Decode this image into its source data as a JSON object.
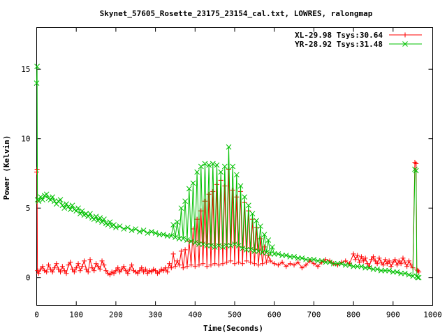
{
  "chart_data": {
    "type": "line",
    "title": "Skynet_57605_Rosette_23175_23154_cal.txt, LOWRES, ralongmap",
    "xlabel": "Time(Seconds)",
    "ylabel": "Power (Kelvin)",
    "xlim": [
      0,
      1000
    ],
    "ylim": [
      -2,
      18
    ],
    "xticks": [
      0,
      100,
      200,
      300,
      400,
      500,
      600,
      700,
      800,
      900,
      1000
    ],
    "yticks": [
      0,
      5,
      10,
      15
    ],
    "grid": false,
    "legend_position": "top-right",
    "series": [
      {
        "name": "XL-29.98 Tsys:30.64",
        "color": "#ff0000",
        "marker": "plus",
        "points": [
          [
            0,
            7.6
          ],
          [
            1,
            7.8
          ],
          [
            2,
            0.5
          ],
          [
            5,
            0.3
          ],
          [
            10,
            0.6
          ],
          [
            15,
            0.8
          ],
          [
            20,
            0.5
          ],
          [
            25,
            0.4
          ],
          [
            30,
            0.9
          ],
          [
            35,
            0.6
          ],
          [
            40,
            0.4
          ],
          [
            45,
            0.7
          ],
          [
            50,
            1.0
          ],
          [
            55,
            0.6
          ],
          [
            60,
            0.4
          ],
          [
            65,
            0.8
          ],
          [
            70,
            0.5
          ],
          [
            75,
            0.3
          ],
          [
            80,
            0.9
          ],
          [
            85,
            1.1
          ],
          [
            90,
            0.6
          ],
          [
            95,
            0.4
          ],
          [
            100,
            0.7
          ],
          [
            105,
            1.0
          ],
          [
            110,
            0.5
          ],
          [
            115,
            0.8
          ],
          [
            120,
            1.2
          ],
          [
            125,
            0.6
          ],
          [
            130,
            0.4
          ],
          [
            135,
            1.3
          ],
          [
            140,
            0.7
          ],
          [
            145,
            0.5
          ],
          [
            150,
            1.0
          ],
          [
            155,
            0.8
          ],
          [
            160,
            0.6
          ],
          [
            165,
            1.2
          ],
          [
            170,
            0.9
          ],
          [
            175,
            0.5
          ],
          [
            180,
            0.3
          ],
          [
            185,
            0.2
          ],
          [
            190,
            0.4
          ],
          [
            195,
            0.3
          ],
          [
            200,
            0.5
          ],
          [
            205,
            0.7
          ],
          [
            210,
            0.4
          ],
          [
            215,
            0.6
          ],
          [
            220,
            0.8
          ],
          [
            225,
            0.5
          ],
          [
            230,
            0.3
          ],
          [
            235,
            0.6
          ],
          [
            240,
            0.9
          ],
          [
            245,
            0.5
          ],
          [
            250,
            0.4
          ],
          [
            255,
            0.3
          ],
          [
            260,
            0.5
          ],
          [
            265,
            0.7
          ],
          [
            270,
            0.4
          ],
          [
            275,
            0.6
          ],
          [
            280,
            0.3
          ],
          [
            285,
            0.5
          ],
          [
            290,
            0.4
          ],
          [
            295,
            0.6
          ],
          [
            300,
            0.5
          ],
          [
            305,
            0.3
          ],
          [
            310,
            0.4
          ],
          [
            315,
            0.6
          ],
          [
            320,
            0.5
          ],
          [
            325,
            0.7
          ],
          [
            330,
            0.4
          ],
          [
            335,
            1.0
          ],
          [
            340,
            0.7
          ],
          [
            345,
            1.7
          ],
          [
            350,
            0.8
          ],
          [
            355,
            1.2
          ],
          [
            360,
            0.9
          ],
          [
            365,
            1.9
          ],
          [
            370,
            0.7
          ],
          [
            375,
            2.0
          ],
          [
            380,
            0.8
          ],
          [
            385,
            2.6
          ],
          [
            390,
            0.9
          ],
          [
            395,
            3.5
          ],
          [
            400,
            0.8
          ],
          [
            405,
            4.2
          ],
          [
            410,
            0.9
          ],
          [
            415,
            4.8
          ],
          [
            420,
            1.0
          ],
          [
            425,
            5.5
          ],
          [
            430,
            0.8
          ],
          [
            435,
            6.0
          ],
          [
            440,
            0.9
          ],
          [
            445,
            6.2
          ],
          [
            450,
            1.0
          ],
          [
            455,
            6.7
          ],
          [
            460,
            0.9
          ],
          [
            465,
            7.0
          ],
          [
            470,
            1.0
          ],
          [
            475,
            6.6
          ],
          [
            480,
            1.1
          ],
          [
            485,
            7.8
          ],
          [
            490,
            1.2
          ],
          [
            495,
            6.3
          ],
          [
            500,
            1.0
          ],
          [
            505,
            5.8
          ],
          [
            510,
            1.1
          ],
          [
            515,
            6.2
          ],
          [
            520,
            1.0
          ],
          [
            525,
            5.4
          ],
          [
            530,
            1.2
          ],
          [
            535,
            4.8
          ],
          [
            540,
            1.1
          ],
          [
            545,
            4.2
          ],
          [
            550,
            1.0
          ],
          [
            555,
            3.6
          ],
          [
            560,
            0.9
          ],
          [
            565,
            2.8
          ],
          [
            570,
            1.0
          ],
          [
            575,
            2.2
          ],
          [
            580,
            1.1
          ],
          [
            585,
            1.6
          ],
          [
            590,
            1.2
          ],
          [
            600,
            1.0
          ],
          [
            610,
            0.9
          ],
          [
            620,
            1.1
          ],
          [
            630,
            0.8
          ],
          [
            640,
            1.0
          ],
          [
            650,
            0.9
          ],
          [
            660,
            1.1
          ],
          [
            670,
            0.7
          ],
          [
            680,
            0.9
          ],
          [
            690,
            1.2
          ],
          [
            700,
            1.0
          ],
          [
            710,
            0.8
          ],
          [
            720,
            1.1
          ],
          [
            730,
            1.3
          ],
          [
            740,
            1.2
          ],
          [
            750,
            1.0
          ],
          [
            760,
            0.9
          ],
          [
            770,
            1.1
          ],
          [
            780,
            1.2
          ],
          [
            790,
            1.0
          ],
          [
            800,
            1.7
          ],
          [
            805,
            1.3
          ],
          [
            810,
            1.6
          ],
          [
            815,
            1.1
          ],
          [
            820,
            1.5
          ],
          [
            825,
            1.2
          ],
          [
            830,
            1.4
          ],
          [
            835,
            1.0
          ],
          [
            840,
            0.8
          ],
          [
            845,
            1.3
          ],
          [
            850,
            1.5
          ],
          [
            855,
            1.2
          ],
          [
            860,
            1.0
          ],
          [
            865,
            1.4
          ],
          [
            870,
            1.1
          ],
          [
            875,
            0.9
          ],
          [
            880,
            1.3
          ],
          [
            885,
            1.0
          ],
          [
            890,
            1.2
          ],
          [
            895,
            0.8
          ],
          [
            900,
            1.1
          ],
          [
            905,
            1.3
          ],
          [
            910,
            0.9
          ],
          [
            915,
            1.2
          ],
          [
            920,
            1.0
          ],
          [
            925,
            1.4
          ],
          [
            930,
            1.1
          ],
          [
            935,
            0.8
          ],
          [
            940,
            1.2
          ],
          [
            945,
            0.9
          ],
          [
            950,
            0.7
          ],
          [
            955,
            8.3
          ],
          [
            958,
            8.2
          ],
          [
            960,
            0.6
          ],
          [
            962,
            0.5
          ],
          [
            965,
            0.4
          ]
        ]
      },
      {
        "name": "YR-28.92 Tsys:31.48",
        "color": "#00c000",
        "marker": "cross",
        "points": [
          [
            0,
            14.0
          ],
          [
            1,
            15.2
          ],
          [
            2,
            5.6
          ],
          [
            5,
            5.5
          ],
          [
            10,
            5.8
          ],
          [
            15,
            5.6
          ],
          [
            20,
            5.9
          ],
          [
            25,
            6.0
          ],
          [
            30,
            5.7
          ],
          [
            35,
            5.6
          ],
          [
            40,
            5.8
          ],
          [
            45,
            5.5
          ],
          [
            50,
            5.3
          ],
          [
            55,
            5.5
          ],
          [
            60,
            5.6
          ],
          [
            65,
            5.2
          ],
          [
            70,
            5.0
          ],
          [
            75,
            5.3
          ],
          [
            80,
            5.1
          ],
          [
            85,
            4.9
          ],
          [
            90,
            5.2
          ],
          [
            95,
            4.9
          ],
          [
            100,
            4.8
          ],
          [
            105,
            5.0
          ],
          [
            110,
            4.6
          ],
          [
            115,
            4.8
          ],
          [
            120,
            4.5
          ],
          [
            125,
            4.6
          ],
          [
            130,
            4.4
          ],
          [
            135,
            4.6
          ],
          [
            140,
            4.3
          ],
          [
            145,
            4.2
          ],
          [
            150,
            4.4
          ],
          [
            155,
            4.1
          ],
          [
            160,
            4.3
          ],
          [
            165,
            4.0
          ],
          [
            170,
            4.2
          ],
          [
            175,
            3.9
          ],
          [
            180,
            3.8
          ],
          [
            185,
            4.0
          ],
          [
            190,
            3.7
          ],
          [
            195,
            3.8
          ],
          [
            200,
            3.6
          ],
          [
            210,
            3.7
          ],
          [
            220,
            3.5
          ],
          [
            230,
            3.6
          ],
          [
            240,
            3.4
          ],
          [
            250,
            3.5
          ],
          [
            260,
            3.3
          ],
          [
            270,
            3.4
          ],
          [
            280,
            3.2
          ],
          [
            290,
            3.3
          ],
          [
            300,
            3.2
          ],
          [
            310,
            3.1
          ],
          [
            320,
            3.1
          ],
          [
            330,
            3.0
          ],
          [
            340,
            3.0
          ],
          [
            345,
            3.8
          ],
          [
            350,
            2.9
          ],
          [
            355,
            4.0
          ],
          [
            360,
            2.8
          ],
          [
            365,
            5.0
          ],
          [
            370,
            2.8
          ],
          [
            375,
            5.5
          ],
          [
            380,
            2.7
          ],
          [
            385,
            6.4
          ],
          [
            390,
            2.6
          ],
          [
            395,
            6.8
          ],
          [
            400,
            2.5
          ],
          [
            405,
            7.6
          ],
          [
            410,
            2.4
          ],
          [
            415,
            8.0
          ],
          [
            420,
            2.4
          ],
          [
            425,
            8.2
          ],
          [
            430,
            2.3
          ],
          [
            435,
            8.1
          ],
          [
            440,
            2.3
          ],
          [
            445,
            8.2
          ],
          [
            450,
            2.2
          ],
          [
            455,
            8.1
          ],
          [
            460,
            2.3
          ],
          [
            465,
            7.6
          ],
          [
            470,
            2.2
          ],
          [
            475,
            8.0
          ],
          [
            480,
            2.3
          ],
          [
            485,
            9.4
          ],
          [
            490,
            2.3
          ],
          [
            495,
            8.0
          ],
          [
            500,
            2.4
          ],
          [
            505,
            7.4
          ],
          [
            510,
            2.3
          ],
          [
            515,
            6.6
          ],
          [
            520,
            2.1
          ],
          [
            525,
            5.8
          ],
          [
            530,
            2.0
          ],
          [
            535,
            5.2
          ],
          [
            540,
            2.0
          ],
          [
            545,
            4.6
          ],
          [
            550,
            1.9
          ],
          [
            555,
            4.1
          ],
          [
            560,
            1.9
          ],
          [
            565,
            3.7
          ],
          [
            570,
            1.8
          ],
          [
            575,
            3.1
          ],
          [
            580,
            1.8
          ],
          [
            585,
            2.7
          ],
          [
            590,
            1.7
          ],
          [
            595,
            2.2
          ],
          [
            600,
            1.7
          ],
          [
            610,
            1.7
          ],
          [
            620,
            1.6
          ],
          [
            630,
            1.6
          ],
          [
            640,
            1.5
          ],
          [
            650,
            1.5
          ],
          [
            660,
            1.4
          ],
          [
            670,
            1.4
          ],
          [
            680,
            1.3
          ],
          [
            690,
            1.3
          ],
          [
            700,
            1.3
          ],
          [
            710,
            1.2
          ],
          [
            720,
            1.2
          ],
          [
            730,
            1.1
          ],
          [
            740,
            1.1
          ],
          [
            750,
            1.0
          ],
          [
            760,
            1.0
          ],
          [
            770,
            1.0
          ],
          [
            780,
            0.9
          ],
          [
            790,
            0.9
          ],
          [
            800,
            0.8
          ],
          [
            810,
            0.8
          ],
          [
            820,
            0.8
          ],
          [
            830,
            0.7
          ],
          [
            840,
            0.7
          ],
          [
            850,
            0.6
          ],
          [
            860,
            0.6
          ],
          [
            870,
            0.5
          ],
          [
            880,
            0.5
          ],
          [
            890,
            0.5
          ],
          [
            900,
            0.4
          ],
          [
            910,
            0.4
          ],
          [
            920,
            0.3
          ],
          [
            930,
            0.3
          ],
          [
            940,
            0.2
          ],
          [
            950,
            0.1
          ],
          [
            955,
            7.8
          ],
          [
            958,
            7.7
          ],
          [
            960,
            0.1
          ],
          [
            962,
            0.0
          ],
          [
            965,
            0.0
          ]
        ]
      }
    ]
  }
}
